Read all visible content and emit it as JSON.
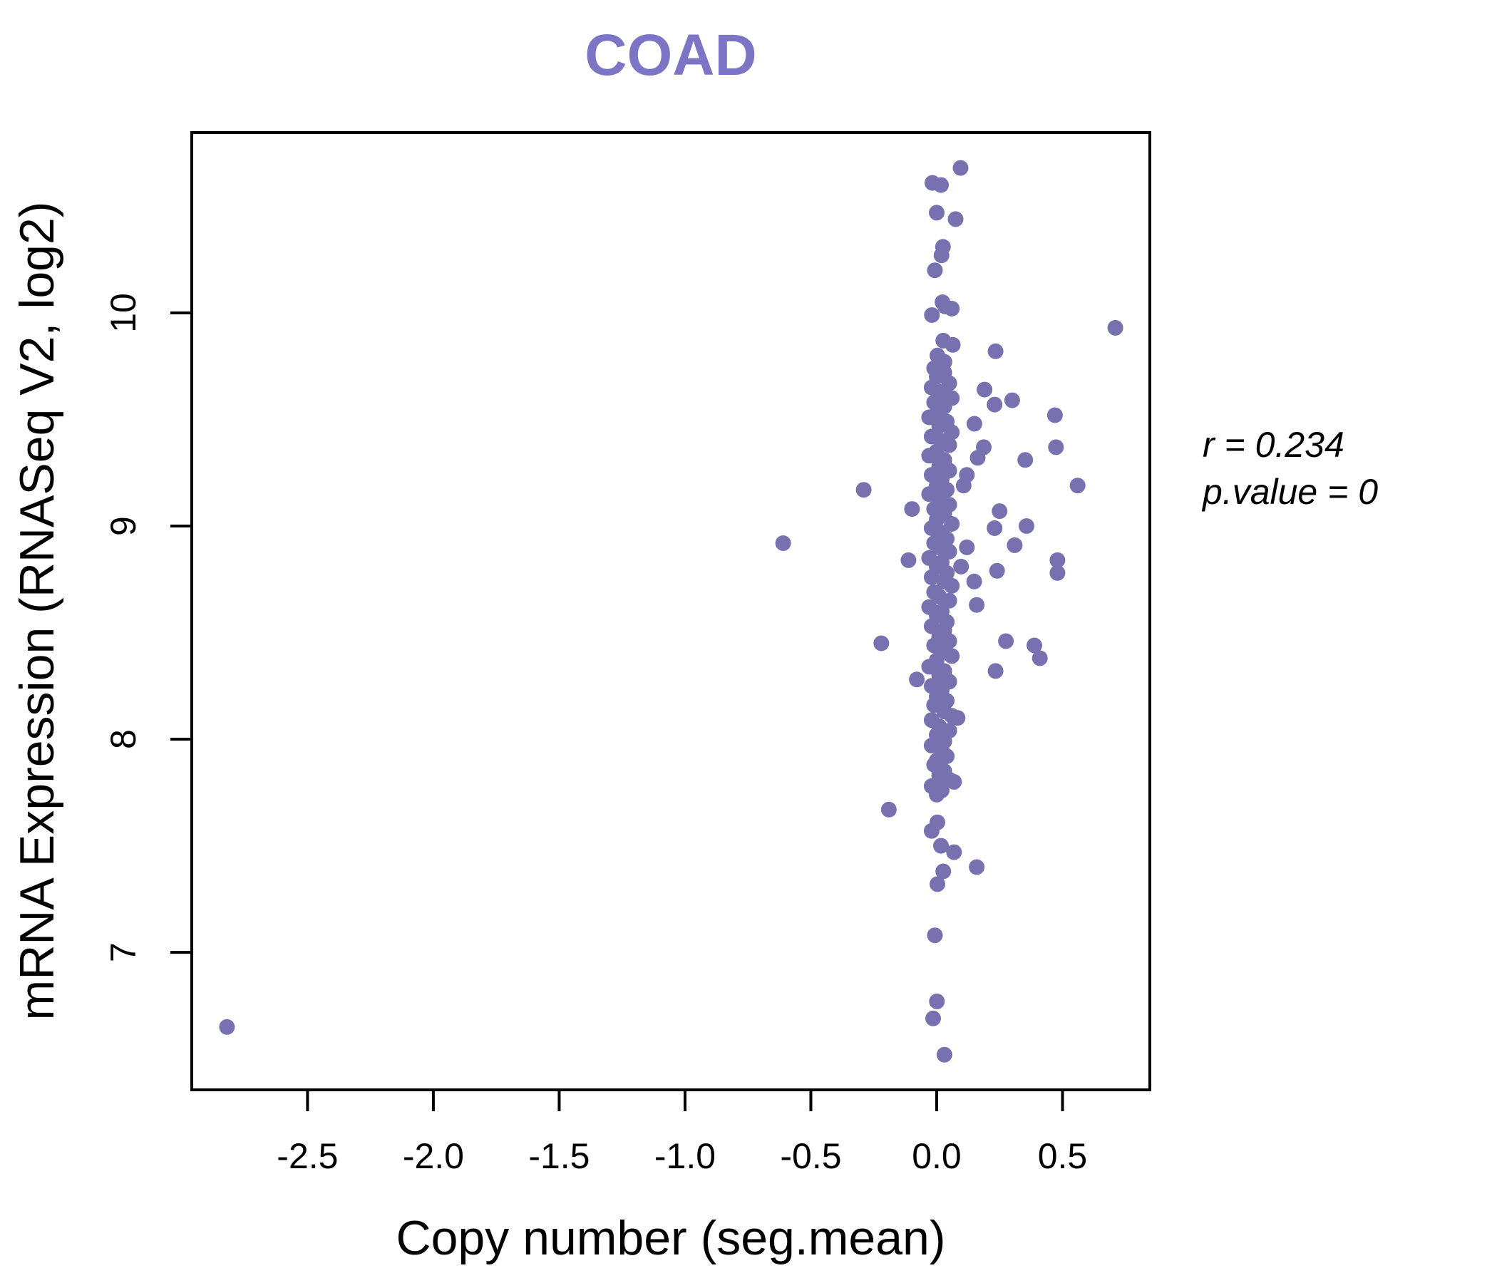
{
  "title": {
    "text": "COAD",
    "color": "#7C74C4"
  },
  "annotation": {
    "line1": "r = 0.234",
    "line2": "p.value = 0"
  },
  "colors": {
    "point": "#7772AF",
    "axis": "#000000",
    "background": "#FFFFFF"
  },
  "axes": {
    "x": {
      "label": "Copy number (seg.mean)",
      "tick_values": [
        -2.5,
        -2.0,
        -1.5,
        -1.0,
        -0.5,
        0.0,
        0.5
      ],
      "tick_labels": [
        "-2.5",
        "-2.0",
        "-1.5",
        "-1.0",
        "-0.5",
        "0.0",
        "0.5"
      ]
    },
    "y": {
      "label": "mRNA Expression (RNASeq V2, log2)",
      "tick_values": [
        7,
        8,
        9,
        10
      ],
      "tick_labels": [
        "7",
        "8",
        "9",
        "10"
      ]
    }
  },
  "chart_data": {
    "type": "scatter",
    "title": "COAD",
    "xlabel": "Copy number (seg.mean)",
    "ylabel": "mRNA Expression (RNASeq V2, log2)",
    "xlim": [
      -2.96,
      0.847
    ],
    "ylim": [
      6.355,
      10.846
    ],
    "grid": false,
    "legend": "none",
    "correlation_r": 0.234,
    "p_value": 0,
    "points": [
      [
        -2.82,
        6.65
      ],
      [
        -0.61,
        8.92
      ],
      [
        -0.29,
        9.17
      ],
      [
        -0.22,
        8.45
      ],
      [
        -0.19,
        7.67
      ],
      [
        -0.112,
        8.84
      ],
      [
        -0.098,
        9.08
      ],
      [
        -0.079,
        8.28
      ],
      [
        0.71,
        9.93
      ],
      [
        0.234,
        9.82
      ],
      [
        0.19,
        9.64
      ],
      [
        0.3,
        9.59
      ],
      [
        0.23,
        9.57
      ],
      [
        0.47,
        9.52
      ],
      [
        0.15,
        9.48
      ],
      [
        0.187,
        9.37
      ],
      [
        0.474,
        9.37
      ],
      [
        0.163,
        9.32
      ],
      [
        0.352,
        9.31
      ],
      [
        0.56,
        9.19
      ],
      [
        0.25,
        9.07
      ],
      [
        0.357,
        9.0
      ],
      [
        0.23,
        8.99
      ],
      [
        0.31,
        8.91
      ],
      [
        0.48,
        8.84
      ],
      [
        0.48,
        8.78
      ],
      [
        0.24,
        8.79
      ],
      [
        0.12,
        9.24
      ],
      [
        0.107,
        9.19
      ],
      [
        0.12,
        8.9
      ],
      [
        0.097,
        8.81
      ],
      [
        0.149,
        8.74
      ],
      [
        0.159,
        8.63
      ],
      [
        0.275,
        8.46
      ],
      [
        0.388,
        8.44
      ],
      [
        0.41,
        8.38
      ],
      [
        0.234,
        8.32
      ],
      [
        0.083,
        8.1
      ],
      [
        0.069,
        7.8
      ],
      [
        0.159,
        7.4
      ],
      [
        0.095,
        10.68
      ],
      [
        -0.017,
        10.61
      ],
      [
        0.017,
        10.6
      ],
      [
        0.0,
        10.47
      ],
      [
        0.075,
        10.44
      ],
      [
        0.025,
        10.31
      ],
      [
        0.019,
        10.27
      ],
      [
        -0.007,
        10.2
      ],
      [
        0.023,
        10.05
      ],
      [
        0.034,
        10.03
      ],
      [
        0.06,
        10.02
      ],
      [
        -0.019,
        9.99
      ],
      [
        0.026,
        9.87
      ],
      [
        0.064,
        9.85
      ],
      [
        0.003,
        9.8
      ],
      [
        0.031,
        9.77
      ],
      [
        -0.01,
        9.74
      ],
      [
        0.03,
        9.72
      ],
      [
        0.0,
        9.7
      ],
      [
        0.05,
        9.67
      ],
      [
        -0.02,
        9.65
      ],
      [
        0.02,
        9.63
      ],
      [
        0.06,
        9.6
      ],
      [
        -0.01,
        9.58
      ],
      [
        0.03,
        9.56
      ],
      [
        0.0,
        9.53
      ],
      [
        -0.03,
        9.51
      ],
      [
        0.04,
        9.49
      ],
      [
        0.01,
        9.47
      ],
      [
        0.06,
        9.44
      ],
      [
        -0.02,
        9.42
      ],
      [
        0.02,
        9.4
      ],
      [
        0.05,
        9.38
      ],
      [
        0.0,
        9.35
      ],
      [
        -0.03,
        9.33
      ],
      [
        0.03,
        9.31
      ],
      [
        0.01,
        9.28
      ],
      [
        0.05,
        9.26
      ],
      [
        -0.02,
        9.24
      ],
      [
        0.02,
        9.22
      ],
      [
        0.0,
        9.19
      ],
      [
        0.04,
        9.17
      ],
      [
        -0.03,
        9.15
      ],
      [
        0.01,
        9.12
      ],
      [
        0.05,
        9.1
      ],
      [
        -0.01,
        9.08
      ],
      [
        0.03,
        9.06
      ],
      [
        0.0,
        9.03
      ],
      [
        0.06,
        9.01
      ],
      [
        -0.02,
        8.99
      ],
      [
        0.02,
        8.97
      ],
      [
        0.04,
        8.94
      ],
      [
        -0.01,
        8.92
      ],
      [
        0.01,
        8.9
      ],
      [
        0.05,
        8.88
      ],
      [
        -0.03,
        8.85
      ],
      [
        0.02,
        8.83
      ],
      [
        0.0,
        8.81
      ],
      [
        0.04,
        8.78
      ],
      [
        -0.02,
        8.76
      ],
      [
        0.03,
        8.74
      ],
      [
        0.06,
        8.72
      ],
      [
        -0.01,
        8.69
      ],
      [
        0.01,
        8.67
      ],
      [
        0.05,
        8.65
      ],
      [
        -0.03,
        8.62
      ],
      [
        0.02,
        8.6
      ],
      [
        0.0,
        8.58
      ],
      [
        0.04,
        8.55
      ],
      [
        -0.02,
        8.53
      ],
      [
        0.03,
        8.51
      ],
      [
        0.01,
        8.48
      ],
      [
        0.05,
        8.46
      ],
      [
        -0.01,
        8.44
      ],
      [
        0.02,
        8.41
      ],
      [
        0.06,
        8.39
      ],
      [
        0.0,
        8.37
      ],
      [
        -0.03,
        8.34
      ],
      [
        0.03,
        8.32
      ],
      [
        0.01,
        8.3
      ],
      [
        0.05,
        8.27
      ],
      [
        -0.02,
        8.25
      ],
      [
        0.02,
        8.23
      ],
      [
        0.0,
        8.2
      ],
      [
        0.04,
        8.18
      ],
      [
        -0.01,
        8.16
      ],
      [
        0.03,
        8.13
      ],
      [
        0.06,
        8.11
      ],
      [
        -0.02,
        8.09
      ],
      [
        0.01,
        8.06
      ],
      [
        0.05,
        8.04
      ],
      [
        0.0,
        8.02
      ],
      [
        0.03,
        7.99
      ],
      [
        -0.02,
        7.97
      ],
      [
        0.02,
        7.95
      ],
      [
        0.04,
        7.92
      ],
      [
        0.0,
        7.9
      ],
      [
        -0.01,
        7.88
      ],
      [
        0.03,
        7.85
      ],
      [
        0.01,
        7.83
      ],
      [
        0.05,
        7.81
      ],
      [
        -0.02,
        7.78
      ],
      [
        0.02,
        7.76
      ],
      [
        0.0,
        7.74
      ],
      [
        0.003,
        7.61
      ],
      [
        -0.02,
        7.57
      ],
      [
        0.017,
        7.5
      ],
      [
        0.069,
        7.47
      ],
      [
        0.026,
        7.38
      ],
      [
        0.003,
        7.32
      ],
      [
        -0.007,
        7.08
      ],
      [
        0.001,
        6.77
      ],
      [
        -0.014,
        6.69
      ],
      [
        0.031,
        6.52
      ]
    ]
  }
}
